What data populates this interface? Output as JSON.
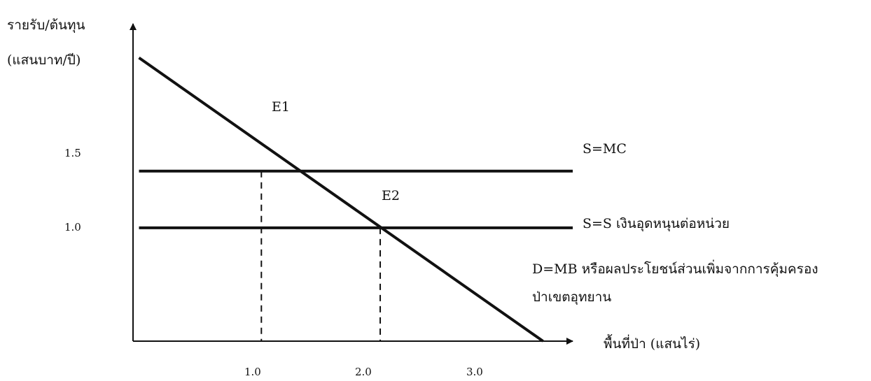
{
  "chart_data": {
    "type": "line",
    "title": "",
    "ylabel_lines": [
      "รายรับ/ต้นทุน",
      "(แสนบาท/ปี)"
    ],
    "xlabel": "พื้นที่ป่า (แสนไร่)",
    "x_ticks": [
      "1.0",
      "2.0",
      "3.0"
    ],
    "y_ticks": [
      "1.5",
      "1.0"
    ],
    "xlim": [
      0,
      3.7
    ],
    "ylim": [
      0,
      2.8
    ],
    "series": [
      {
        "name": "S=MC",
        "kind": "horizontal",
        "x": [
          0.05,
          3.7
        ],
        "y": [
          1.5,
          1.5
        ]
      },
      {
        "name": "S=S เงินอุดหนุนต่อหน่วย",
        "kind": "horizontal",
        "x": [
          0.05,
          3.7
        ],
        "y": [
          1.0,
          1.0
        ]
      },
      {
        "name_lines": [
          "D=MB หรือผลประโยชน์ส่วนเพิ่มจากการคุ้มครอง",
          "ป่าเขตอุทยาน"
        ],
        "kind": "demand",
        "x": [
          0.05,
          3.45
        ],
        "y": [
          2.5,
          0.0
        ]
      }
    ],
    "points": [
      {
        "label": "E1",
        "x": 1.08,
        "y": 1.5
      },
      {
        "label": "E2",
        "x": 2.08,
        "y": 1.0
      }
    ],
    "dropdown_lines_to_x_axis": [
      1.08,
      2.08
    ]
  }
}
